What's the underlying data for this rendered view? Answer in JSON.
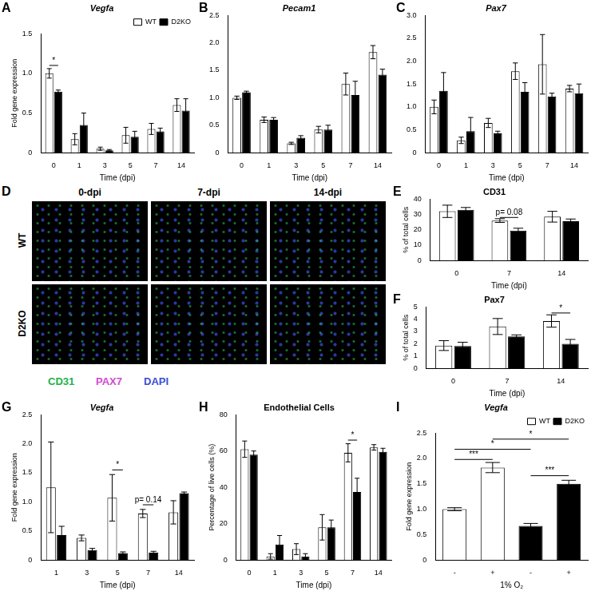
{
  "chart_data": [
    {
      "type": "bar",
      "panel": "A",
      "title": "Vegfa",
      "x_label": "Time (dpi)",
      "y_label": "Fold gene expression",
      "categories": [
        "0",
        "1",
        "3",
        "5",
        "7",
        "14"
      ],
      "series": [
        {
          "name": "WT",
          "color": "#ffffff",
          "values": [
            1.0,
            0.17,
            0.05,
            0.22,
            0.3,
            0.6
          ],
          "errors": [
            0.06,
            0.07,
            0.02,
            0.1,
            0.07,
            0.08
          ]
        },
        {
          "name": "D2KO",
          "color": "#000000",
          "values": [
            0.77,
            0.35,
            0.03,
            0.2,
            0.27,
            0.53
          ],
          "errors": [
            0.02,
            0.15,
            0.01,
            0.07,
            0.04,
            0.15
          ]
        }
      ],
      "ylim": [
        0,
        1.5
      ],
      "yticks": [
        0,
        0.5,
        {
          "value": 1,
          "label": "1.0"
        },
        1.5
      ],
      "grid": false,
      "legend": "top-right",
      "annotations": [
        {
          "text": "*",
          "from": [
            0,
            0
          ],
          "to": [
            0,
            1
          ],
          "y": 1.1
        }
      ]
    },
    {
      "type": "bar",
      "panel": "B",
      "title": "Pecam1",
      "x_label": "Time (dpi)",
      "categories": [
        "0",
        "1",
        "3",
        "5",
        "7",
        "14"
      ],
      "series": [
        {
          "name": "WT",
          "color": "#ffffff",
          "values": [
            1.0,
            0.6,
            0.17,
            0.42,
            1.25,
            1.83
          ],
          "errors": [
            0.03,
            0.05,
            0.02,
            0.06,
            0.2,
            0.12
          ]
        },
        {
          "name": "D2KO",
          "color": "#000000",
          "values": [
            1.1,
            0.6,
            0.27,
            0.42,
            1.05,
            1.42
          ],
          "errors": [
            0.02,
            0.04,
            0.04,
            0.08,
            0.25,
            0.1
          ]
        }
      ],
      "ylim": [
        0,
        2.5
      ],
      "yticks": [
        0,
        0.5,
        {
          "value": 1,
          "label": "1.0"
        },
        1.5,
        {
          "value": 2,
          "label": "2.0"
        },
        2.5
      ],
      "grid": false
    },
    {
      "type": "bar",
      "panel": "C",
      "title": "Pax7",
      "x_label": "Time (dpi)",
      "categories": [
        "0",
        "1",
        "3",
        "5",
        "7",
        "14"
      ],
      "series": [
        {
          "name": "WT",
          "color": "#ffffff",
          "values": [
            1.0,
            0.27,
            0.65,
            1.78,
            1.93,
            1.4
          ],
          "errors": [
            0.15,
            0.07,
            0.1,
            0.18,
            0.65,
            0.07
          ]
        },
        {
          "name": "D2KO",
          "color": "#000000",
          "values": [
            1.35,
            0.47,
            0.42,
            1.33,
            1.23,
            1.3
          ],
          "errors": [
            0.4,
            0.3,
            0.05,
            0.2,
            0.07,
            0.2
          ]
        }
      ],
      "ylim": [
        0,
        3
      ],
      "yticks": [
        0,
        0.5,
        {
          "value": 1,
          "label": "1.0"
        },
        1.5,
        {
          "value": 2,
          "label": "2.0"
        },
        2.5,
        {
          "value": 3,
          "label": "3.0"
        }
      ],
      "grid": false
    },
    {
      "type": "bar",
      "panel": "E",
      "title": "CD31",
      "x_label": "Time (dpi)",
      "y_label": "% of total cells",
      "categories": [
        "0",
        "7",
        "14"
      ],
      "series": [
        {
          "name": "WT",
          "color": "#ffffff",
          "values": [
            32,
            26,
            28.5
          ],
          "errors": [
            4,
            1.2,
            3.5
          ]
        },
        {
          "name": "D2KO",
          "color": "#000000",
          "values": [
            33,
            19.5,
            25.5
          ],
          "errors": [
            1.5,
            1.5,
            1.5
          ]
        }
      ],
      "ylim": [
        0,
        40
      ],
      "yticks": [
        0,
        10,
        20,
        30,
        40
      ],
      "grid": false,
      "annotations": [
        {
          "text": "p= 0.08",
          "from": [
            1,
            0
          ],
          "to": [
            1,
            1
          ],
          "y": 28
        }
      ]
    },
    {
      "type": "bar",
      "panel": "F",
      "title": "Pax7",
      "x_label": "Time (dpi)",
      "y_label": "% of total cells",
      "categories": [
        "0",
        "7",
        "14"
      ],
      "series": [
        {
          "name": "WT",
          "color": "#ffffff",
          "values": [
            1.85,
            3.4,
            3.85
          ],
          "errors": [
            0.4,
            0.65,
            0.5
          ]
        },
        {
          "name": "D2KO",
          "color": "#000000",
          "values": [
            1.82,
            2.6,
            2.0
          ],
          "errors": [
            0.3,
            0.12,
            0.35
          ]
        }
      ],
      "ylim": [
        0,
        5
      ],
      "yticks": [
        0,
        1,
        2,
        3,
        4,
        5
      ],
      "grid": false,
      "annotations": [
        {
          "text": "*",
          "from": [
            2,
            0
          ],
          "to": [
            2,
            1
          ],
          "y": 4.5
        }
      ]
    },
    {
      "type": "bar",
      "panel": "G",
      "title": "Vegfa",
      "x_label": "Time (dpi)",
      "y_label": "Fold gene expression",
      "categories": [
        "1",
        "3",
        "5",
        "7",
        "14"
      ],
      "series": [
        {
          "name": "WT",
          "color": "#ffffff",
          "values": [
            1.25,
            0.38,
            1.07,
            0.8,
            0.82
          ],
          "errors": [
            0.78,
            0.05,
            0.4,
            0.07,
            0.2
          ]
        },
        {
          "name": "D2KO",
          "color": "#000000",
          "values": [
            0.43,
            0.17,
            0.12,
            0.13,
            1.15
          ],
          "errors": [
            0.15,
            0.03,
            0.02,
            0.02,
            0.02
          ]
        }
      ],
      "ylim": [
        0,
        2.5
      ],
      "yticks": [
        0,
        0.5,
        {
          "value": 1,
          "label": "1.0"
        },
        1.5,
        {
          "value": 2,
          "label": "2.0"
        },
        2.5
      ],
      "grid": false,
      "annotations": [
        {
          "text": "*",
          "from": [
            2,
            0
          ],
          "to": [
            2,
            1
          ],
          "y": 1.55
        },
        {
          "text": "p= 0.14",
          "from": [
            3,
            0
          ],
          "to": [
            3,
            1
          ],
          "y": 0.95
        }
      ]
    },
    {
      "type": "bar",
      "panel": "H",
      "title": "Endothelial Cells",
      "x_label": "Time (dpi)",
      "y_label": "Percentage of live cells (%)",
      "categories": [
        "0",
        "1",
        "3",
        "5",
        "7",
        "14"
      ],
      "series": [
        {
          "name": "WT",
          "color": "#ffffff",
          "values": [
            61,
            2,
            6,
            18,
            59,
            62
          ],
          "errors": [
            4.5,
            1.5,
            3,
            7,
            5,
            1.5
          ]
        },
        {
          "name": "D2KO",
          "color": "#000000",
          "values": [
            58,
            8.5,
            2,
            18,
            37.5,
            59.5
          ],
          "errors": [
            2,
            5,
            1.5,
            4,
            7.5,
            2
          ]
        }
      ],
      "ylim": [
        0,
        80
      ],
      "yticks": [
        0,
        20,
        40,
        60,
        80
      ],
      "grid": false,
      "annotations": [
        {
          "text": "*",
          "from": [
            4,
            0
          ],
          "to": [
            4,
            1
          ],
          "y": 66
        }
      ]
    },
    {
      "type": "bar",
      "panel": "I",
      "title": "Vegfa",
      "x_label": "1% O₂",
      "y_label": "Fold gene expression",
      "categories": [
        "-",
        "+",
        "-",
        "+"
      ],
      "series": [
        {
          "name": "WT",
          "color": "#ffffff",
          "values": [
            1.0,
            1.82,
            null,
            null
          ],
          "errors": [
            0.03,
            0.1,
            null,
            null
          ]
        },
        {
          "name": "D2KO",
          "color": "#000000",
          "values": [
            null,
            null,
            0.67,
            1.5
          ],
          "errors": [
            null,
            null,
            0.05,
            0.07
          ]
        }
      ],
      "ylim": [
        0,
        2.5
      ],
      "yticks": [
        0,
        0.5,
        {
          "value": 1,
          "label": "1.0"
        },
        1.5,
        {
          "value": 2,
          "label": "2.0"
        },
        2.5
      ],
      "grid": false,
      "legend": "top-right",
      "annotations": [
        {
          "text": "***",
          "from": [
            0,
            0
          ],
          "to": [
            1,
            0
          ],
          "y": 1.98
        },
        {
          "text": "***",
          "from": [
            2,
            1
          ],
          "to": [
            3,
            1
          ],
          "y": 1.66
        },
        {
          "text": "*",
          "from": [
            0,
            0
          ],
          "to": [
            2,
            1
          ],
          "y": 2.18
        },
        {
          "text": "*",
          "from": [
            1,
            0
          ],
          "to": [
            3,
            1
          ],
          "y": 2.38
        }
      ]
    }
  ],
  "micrograph": {
    "panel": "D",
    "columns": [
      "0-dpi",
      "7-dpi",
      "14-dpi"
    ],
    "rows": [
      "WT",
      "D2KO"
    ],
    "stains": [
      {
        "text": "CD31",
        "color": "#22b14c"
      },
      {
        "text": "PAX7",
        "color": "#d24bd2"
      },
      {
        "text": "DAPI",
        "color": "#3b4fd8"
      }
    ]
  }
}
